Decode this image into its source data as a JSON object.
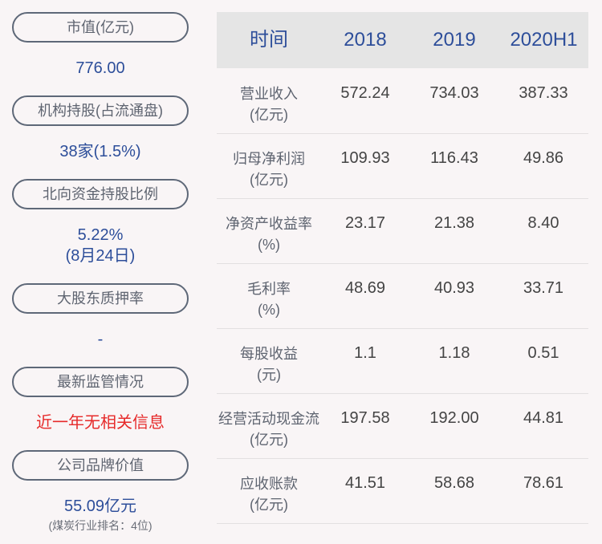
{
  "left": [
    {
      "label": "市值(亿元)",
      "value": "776.00"
    },
    {
      "label": "机构持股(占流通盘)",
      "value": "38家(1.5%)"
    },
    {
      "label": "北向资金持股比例",
      "value": "5.22%",
      "value2": "(8月24日)"
    },
    {
      "label": "大股东质押率",
      "value": "-"
    },
    {
      "label": "最新监管情况",
      "value": "近一年无相关信息"
    },
    {
      "label": "公司品牌价值",
      "value": "55.09亿元",
      "note": "(煤炭行业排名：4位)"
    }
  ],
  "table": {
    "headers": [
      "时间",
      "2018",
      "2019",
      "2020H1"
    ],
    "rows": [
      {
        "name": "营业收入",
        "unit": "(亿元)",
        "values": [
          "572.24",
          "734.03",
          "387.33"
        ]
      },
      {
        "name": "归母净利润",
        "unit": "(亿元)",
        "values": [
          "109.93",
          "116.43",
          "49.86"
        ]
      },
      {
        "name": "净资产收益率",
        "unit": "(%)",
        "values": [
          "23.17",
          "21.38",
          "8.40"
        ]
      },
      {
        "name": "毛利率",
        "unit": "(%)",
        "values": [
          "48.69",
          "40.93",
          "33.71"
        ]
      },
      {
        "name": "每股收益",
        "unit": "(元)",
        "values": [
          "1.1",
          "1.18",
          "0.51"
        ]
      },
      {
        "name": "经营活动现金流",
        "unit": "(亿元)",
        "values": [
          "197.58",
          "192.00",
          "44.81"
        ]
      },
      {
        "name": "应收账款",
        "unit": "(亿元)",
        "values": [
          "41.51",
          "58.68",
          "78.61"
        ]
      }
    ]
  }
}
